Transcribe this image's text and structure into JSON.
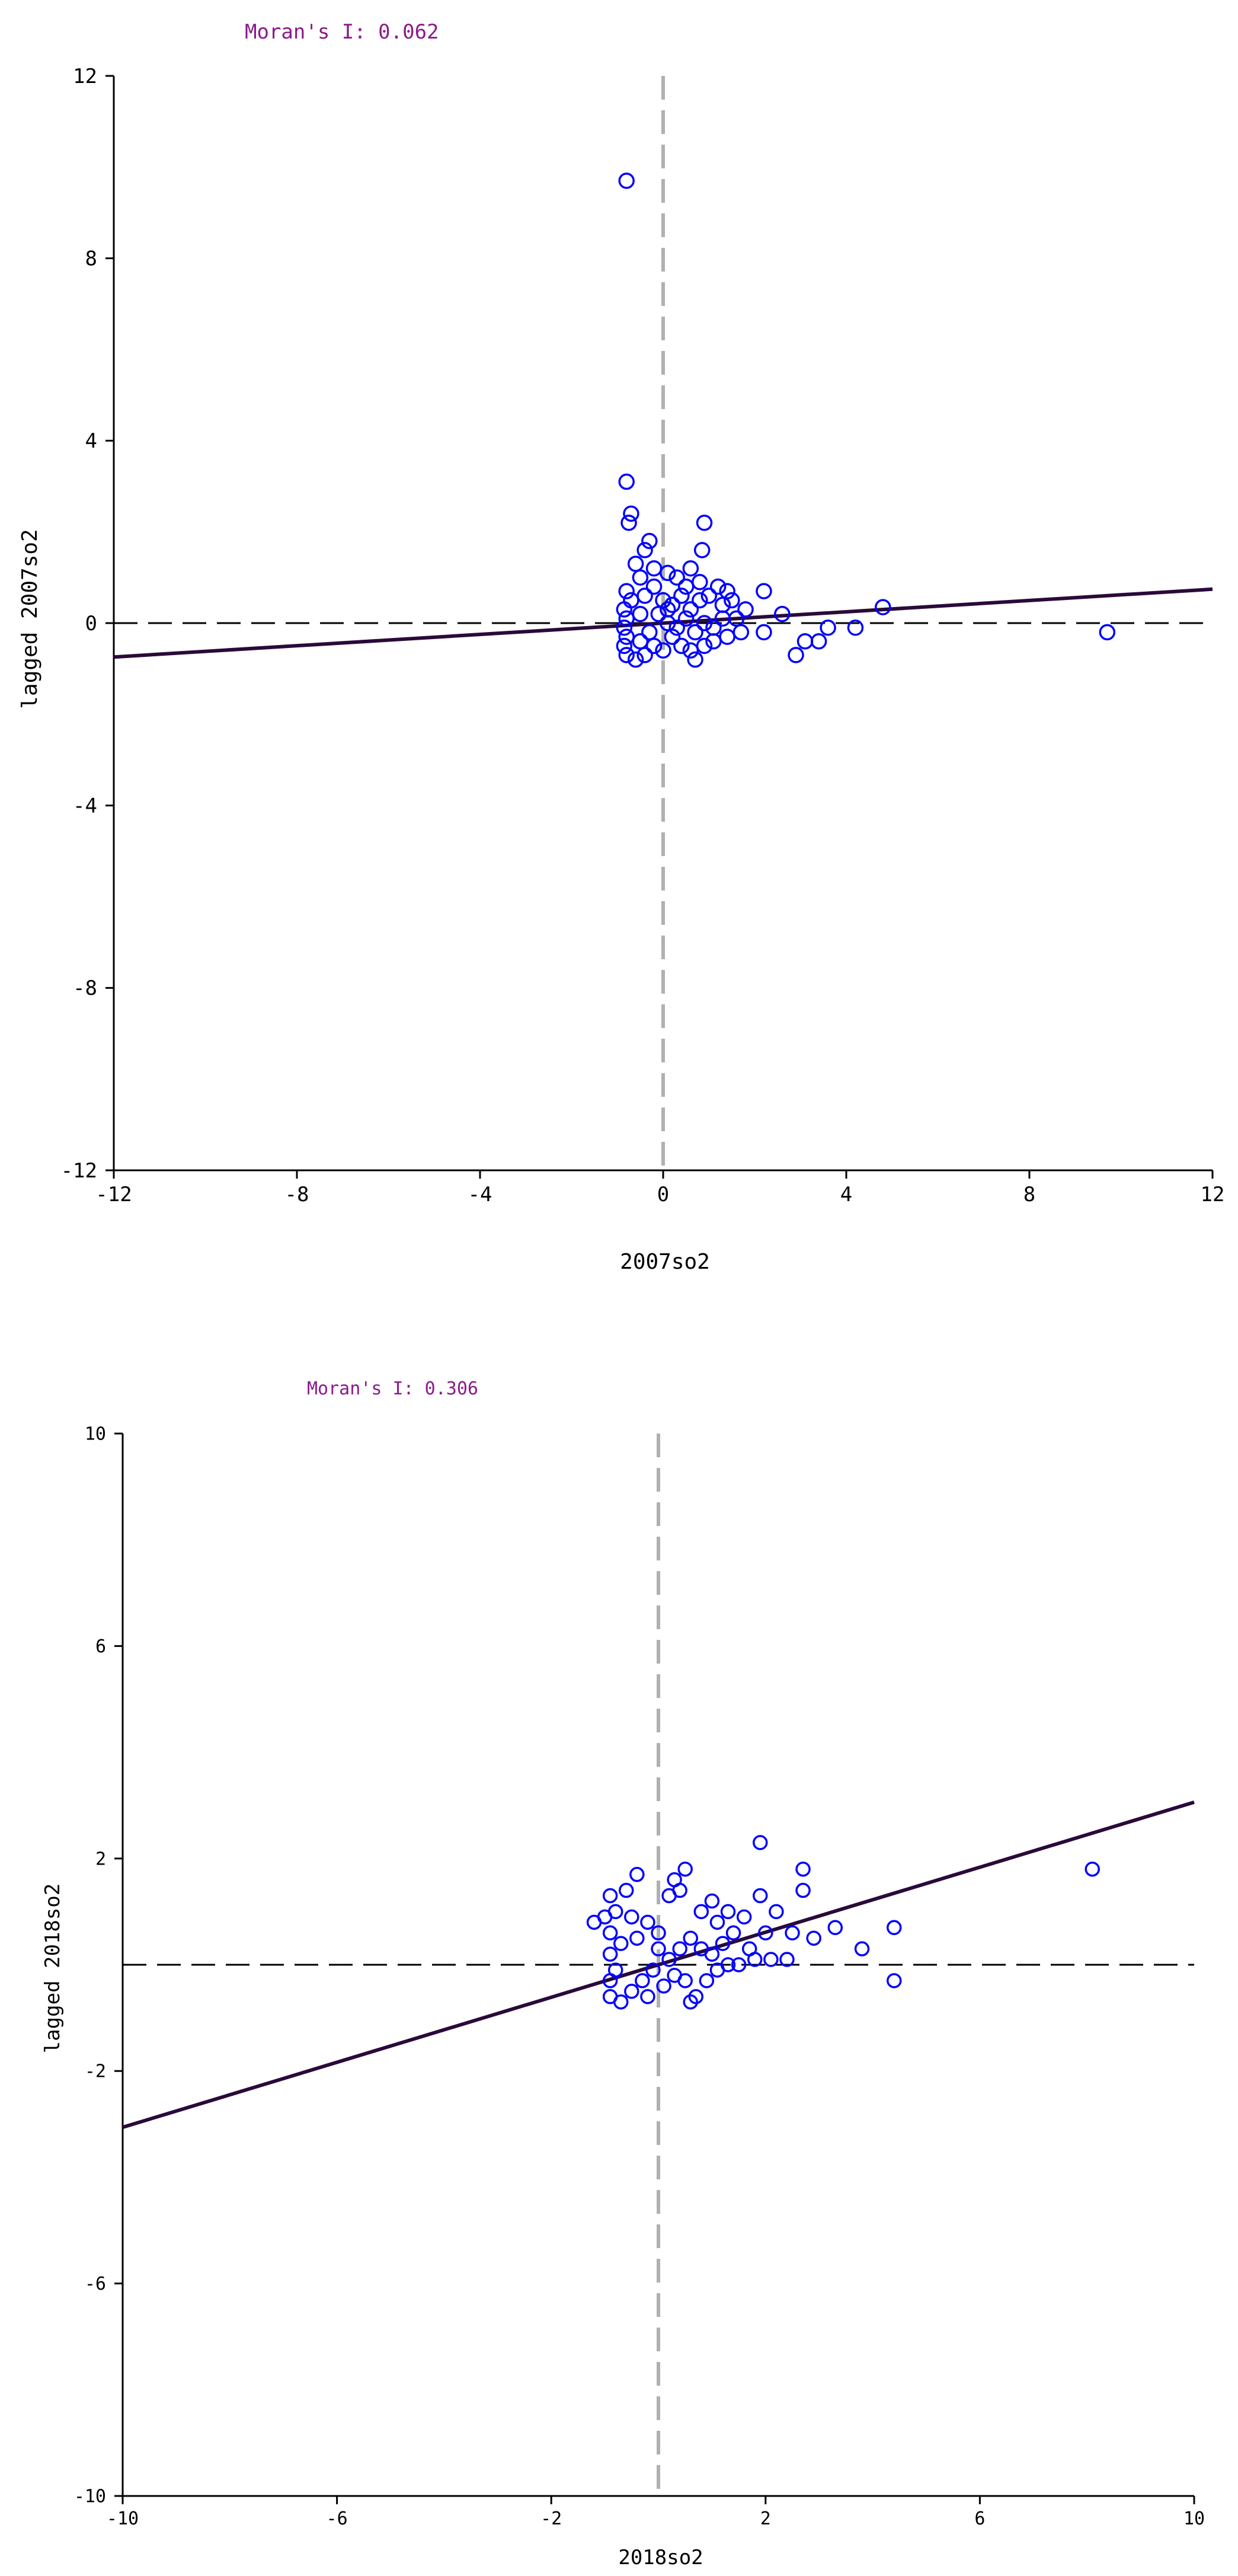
{
  "chart_data": [
    {
      "type": "scatter",
      "title": "Moran's I: 0.062",
      "xlabel": "2007so2",
      "ylabel": "lagged 2007so2",
      "xlim": [
        -12,
        12
      ],
      "ylim": [
        -12,
        12
      ],
      "xticks": [
        "-12",
        "-8",
        "-4",
        "0",
        "4",
        "8",
        "12"
      ],
      "yticks": [
        "-12",
        "-8",
        "-4",
        "0",
        "4",
        "8",
        "12"
      ],
      "slope": 0.062,
      "grid": false,
      "colors": {
        "points": "#0000ff",
        "line": "#2a0a3a",
        "moran_text": "#8B1A8B",
        "ref_vertical": "#b0b0b0",
        "ref_horizontal": "#000000"
      },
      "points": [
        [
          -0.8,
          9.7
        ],
        [
          -0.8,
          3.1
        ],
        [
          -0.7,
          2.4
        ],
        [
          -0.75,
          2.2
        ],
        [
          -0.3,
          1.8
        ],
        [
          -0.4,
          1.6
        ],
        [
          0.9,
          2.2
        ],
        [
          0.85,
          1.6
        ],
        [
          -0.6,
          1.3
        ],
        [
          -0.2,
          1.2
        ],
        [
          0.1,
          1.1
        ],
        [
          0.3,
          1.0
        ],
        [
          0.6,
          1.2
        ],
        [
          -0.5,
          1.0
        ],
        [
          0.8,
          0.9
        ],
        [
          1.2,
          0.8
        ],
        [
          1.4,
          0.7
        ],
        [
          -0.8,
          0.7
        ],
        [
          -0.7,
          0.5
        ],
        [
          -0.85,
          0.3
        ],
        [
          -0.8,
          0.1
        ],
        [
          -0.85,
          -0.1
        ],
        [
          -0.8,
          -0.3
        ],
        [
          -0.85,
          -0.5
        ],
        [
          -0.8,
          -0.7
        ],
        [
          -0.6,
          -0.8
        ],
        [
          -0.4,
          -0.7
        ],
        [
          -0.5,
          -0.4
        ],
        [
          -0.3,
          -0.2
        ],
        [
          -0.5,
          0.2
        ],
        [
          -0.4,
          0.6
        ],
        [
          -0.2,
          0.8
        ],
        [
          0.0,
          0.5
        ],
        [
          0.2,
          0.4
        ],
        [
          0.4,
          0.6
        ],
        [
          0.6,
          0.3
        ],
        [
          0.8,
          0.5
        ],
        [
          1.0,
          0.6
        ],
        [
          1.3,
          0.4
        ],
        [
          1.5,
          0.5
        ],
        [
          0.1,
          0.0
        ],
        [
          0.3,
          -0.1
        ],
        [
          0.5,
          0.1
        ],
        [
          0.7,
          -0.2
        ],
        [
          0.9,
          0.0
        ],
        [
          1.1,
          -0.1
        ],
        [
          1.3,
          0.1
        ],
        [
          1.6,
          0.1
        ],
        [
          0.2,
          -0.3
        ],
        [
          0.4,
          -0.5
        ],
        [
          0.6,
          -0.6
        ],
        [
          0.7,
          -0.8
        ],
        [
          0.9,
          -0.5
        ],
        [
          1.1,
          -0.4
        ],
        [
          1.4,
          -0.3
        ],
        [
          1.7,
          -0.2
        ],
        [
          0.0,
          -0.6
        ],
        [
          -0.2,
          -0.5
        ],
        [
          0.1,
          0.3
        ],
        [
          -0.1,
          0.2
        ],
        [
          1.8,
          0.3
        ],
        [
          2.2,
          0.7
        ],
        [
          2.2,
          -0.2
        ],
        [
          2.6,
          0.2
        ],
        [
          2.9,
          -0.7
        ],
        [
          3.1,
          -0.4
        ],
        [
          3.4,
          -0.4
        ],
        [
          3.6,
          -0.1
        ],
        [
          4.2,
          -0.1
        ],
        [
          4.8,
          0.35
        ],
        [
          9.7,
          -0.2
        ],
        [
          0.5,
          0.8
        ]
      ]
    },
    {
      "type": "scatter",
      "title": "Moran's I: 0.306",
      "xlabel": "2018so2",
      "ylabel": "lagged 2018so2",
      "xlim": [
        -10,
        10
      ],
      "ylim": [
        -10,
        10
      ],
      "xticks": [
        "-10",
        "-6",
        "-2",
        "2",
        "6",
        "10"
      ],
      "yticks": [
        "-10",
        "-6",
        "-2",
        "2",
        "6",
        "10"
      ],
      "slope": 0.306,
      "grid": false,
      "colors": {
        "points": "#0000ff",
        "line": "#2a0a3a",
        "moran_text": "#8B1A8B",
        "ref_vertical": "#b0b0b0",
        "ref_horizontal": "#000000"
      },
      "points": [
        [
          8.1,
          1.8
        ],
        [
          4.4,
          0.7
        ],
        [
          4.4,
          -0.3
        ],
        [
          3.8,
          0.3
        ],
        [
          3.3,
          0.7
        ],
        [
          2.9,
          0.5
        ],
        [
          2.7,
          1.4
        ],
        [
          2.7,
          1.8
        ],
        [
          1.9,
          2.3
        ],
        [
          1.9,
          1.3
        ],
        [
          1.6,
          0.9
        ],
        [
          1.3,
          1.0
        ],
        [
          1.1,
          0.8
        ],
        [
          2.2,
          1.0
        ],
        [
          2.5,
          0.6
        ],
        [
          2.0,
          0.6
        ],
        [
          1.0,
          1.2
        ],
        [
          0.4,
          1.4
        ],
        [
          0.2,
          1.3
        ],
        [
          0.3,
          1.6
        ],
        [
          0.5,
          1.8
        ],
        [
          -0.4,
          1.7
        ],
        [
          -0.6,
          1.4
        ],
        [
          -0.9,
          1.3
        ],
        [
          -0.8,
          1.0
        ],
        [
          -1.0,
          0.9
        ],
        [
          -1.2,
          0.8
        ],
        [
          -0.9,
          0.6
        ],
        [
          -0.7,
          0.4
        ],
        [
          -0.4,
          0.5
        ],
        [
          -0.2,
          0.8
        ],
        [
          0.0,
          0.6
        ],
        [
          -0.9,
          0.2
        ],
        [
          -0.8,
          -0.1
        ],
        [
          -0.9,
          -0.3
        ],
        [
          -0.9,
          -0.6
        ],
        [
          -0.7,
          -0.7
        ],
        [
          -0.5,
          -0.5
        ],
        [
          -0.3,
          -0.3
        ],
        [
          -0.1,
          -0.1
        ],
        [
          0.2,
          0.1
        ],
        [
          0.4,
          0.3
        ],
        [
          0.6,
          0.5
        ],
        [
          0.8,
          0.3
        ],
        [
          1.0,
          0.2
        ],
        [
          1.2,
          0.4
        ],
        [
          1.4,
          0.6
        ],
        [
          1.7,
          0.3
        ],
        [
          2.1,
          0.1
        ],
        [
          2.4,
          0.1
        ],
        [
          0.1,
          -0.4
        ],
        [
          0.3,
          -0.2
        ],
        [
          0.5,
          -0.3
        ],
        [
          0.7,
          -0.6
        ],
        [
          0.9,
          -0.3
        ],
        [
          1.1,
          -0.1
        ],
        [
          1.3,
          0.0
        ],
        [
          0.6,
          -0.7
        ],
        [
          -0.2,
          -0.6
        ],
        [
          0.0,
          0.3
        ],
        [
          -0.5,
          0.9
        ],
        [
          0.8,
          1.0
        ],
        [
          1.5,
          0.0
        ],
        [
          1.8,
          0.1
        ]
      ]
    }
  ]
}
